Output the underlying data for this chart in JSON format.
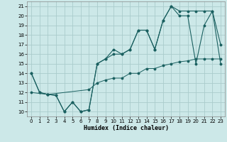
{
  "xlabel": "Humidex (Indice chaleur)",
  "background_color": "#cce8e8",
  "grid_color": "#aacccc",
  "line_color": "#1a6060",
  "xlim": [
    -0.5,
    23.5
  ],
  "ylim": [
    9.5,
    21.5
  ],
  "xticks": [
    0,
    1,
    2,
    3,
    4,
    5,
    6,
    7,
    8,
    9,
    10,
    11,
    12,
    13,
    14,
    15,
    16,
    17,
    18,
    19,
    20,
    21,
    22,
    23
  ],
  "yticks": [
    10,
    11,
    12,
    13,
    14,
    15,
    16,
    17,
    18,
    19,
    20,
    21
  ],
  "series1_x": [
    0,
    1,
    2,
    3,
    4,
    5,
    6,
    7,
    8,
    9,
    10,
    11,
    12,
    13,
    14,
    15,
    16,
    17,
    18,
    19,
    20,
    21,
    22,
    23
  ],
  "series1_y": [
    14,
    12,
    11.8,
    11.7,
    10,
    11,
    10,
    10.2,
    15,
    15.5,
    16,
    16,
    16.5,
    18.5,
    18.5,
    16.5,
    19.5,
    21,
    20,
    20,
    15,
    19,
    20.5,
    15
  ],
  "series2_x": [
    0,
    1,
    2,
    3,
    4,
    5,
    6,
    7,
    8,
    9,
    10,
    11,
    12,
    13,
    14,
    15,
    16,
    17,
    18,
    19,
    20,
    21,
    22,
    23
  ],
  "series2_y": [
    14,
    12,
    11.8,
    11.7,
    10,
    11,
    10,
    10.2,
    15,
    15.5,
    16.5,
    16,
    16.5,
    18.5,
    18.5,
    16.5,
    19.5,
    21,
    20.5,
    20.5,
    20.5,
    20.5,
    20.5,
    17
  ],
  "series3_x": [
    0,
    2,
    7,
    8,
    9,
    10,
    11,
    12,
    13,
    14,
    15,
    16,
    17,
    18,
    19,
    20,
    21,
    22,
    23
  ],
  "series3_y": [
    12,
    11.8,
    12.3,
    13,
    13.3,
    13.5,
    13.5,
    14,
    14,
    14.5,
    14.5,
    14.8,
    15,
    15.2,
    15.3,
    15.5,
    15.5,
    15.5,
    15.5
  ]
}
